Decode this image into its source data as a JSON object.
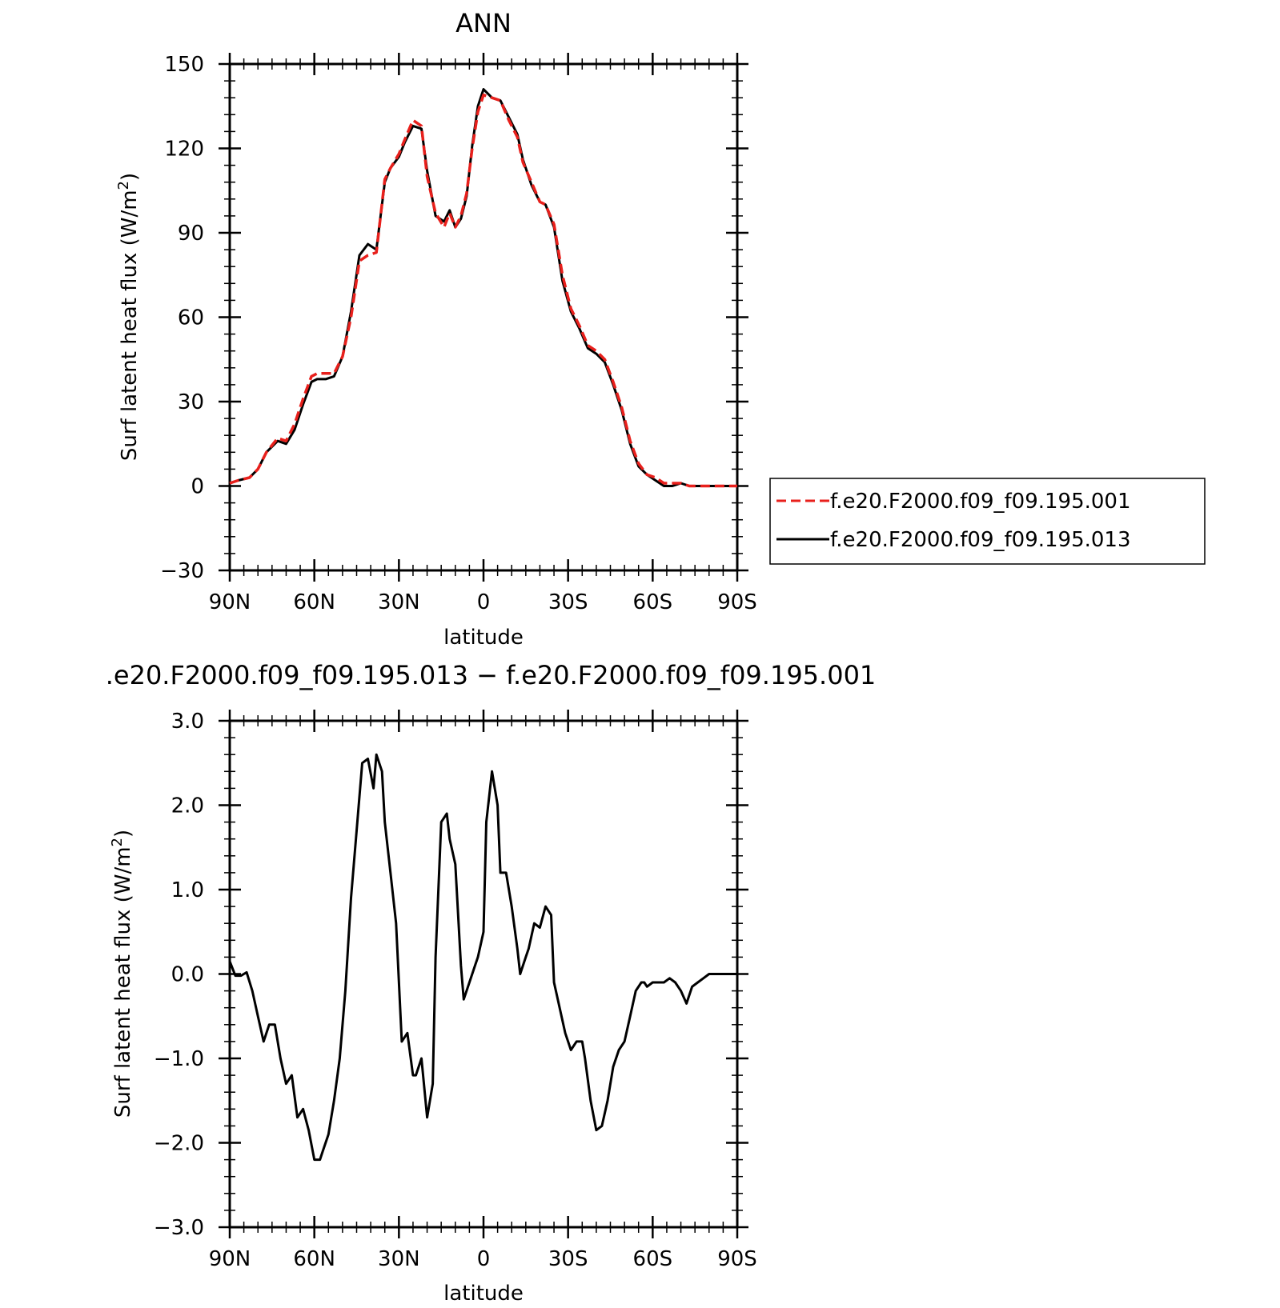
{
  "chart_data": [
    {
      "type": "line",
      "title": "ANN",
      "xlabel": "latitude",
      "ylabel": "Surf latent heat flux (W/m²)",
      "ylabel_main": "Surf latent heat flux (W/m",
      "ylabel_sup": "2",
      "ylabel_tail": ")",
      "xlim": [
        90,
        -90
      ],
      "ylim": [
        -30,
        150
      ],
      "xticks": [
        90,
        60,
        30,
        0,
        -30,
        -60,
        -90
      ],
      "xtick_labels": [
        "90N",
        "60N",
        "30N",
        "0",
        "30S",
        "60S",
        "90S"
      ],
      "yticks": [
        -30,
        0,
        30,
        60,
        90,
        120,
        150
      ],
      "ytick_labels": [
        "−30",
        "0",
        "30",
        "60",
        "90",
        "120",
        "150"
      ],
      "grid": false,
      "legend_position": "right",
      "series": [
        {
          "name": "f.e20.F2000.f09_f09.195.001",
          "color": "#e8201c",
          "dash": "dashed",
          "x": [
            90,
            87,
            83,
            80,
            77,
            73,
            70,
            67,
            64,
            61,
            59,
            56,
            53,
            50,
            47,
            44,
            41,
            38,
            35,
            33,
            30,
            28,
            25,
            22,
            20,
            17,
            14,
            12,
            10,
            8,
            6,
            4,
            2,
            0,
            -3,
            -6,
            -9,
            -12,
            -14,
            -17,
            -20,
            -22,
            -25,
            -28,
            -31,
            -34,
            -37,
            -40,
            -43,
            -46,
            -49,
            -52,
            -55,
            -58,
            -61,
            -64,
            -67,
            -70,
            -73,
            -76,
            -80,
            -83,
            -86,
            -88,
            -90
          ],
          "y": [
            1,
            2,
            3,
            6,
            12,
            17,
            16,
            22,
            31,
            39,
            40,
            40,
            40,
            46,
            60,
            80,
            82,
            83,
            109,
            113,
            118,
            123,
            130,
            128,
            110,
            97,
            92,
            97,
            92,
            96,
            104,
            120,
            133,
            139,
            138,
            137,
            130,
            124,
            115,
            108,
            101,
            100,
            93,
            75,
            63,
            57,
            50,
            48,
            45,
            37,
            28,
            16,
            8,
            4,
            3,
            1,
            1,
            1,
            0,
            0,
            0,
            0,
            0,
            0,
            0
          ]
        },
        {
          "name": "f.e20.F2000.f09_f09.195.013",
          "color": "#000000",
          "dash": "solid",
          "x": [
            90,
            87,
            83,
            80,
            77,
            73,
            70,
            67,
            64,
            61,
            59,
            56,
            53,
            50,
            47,
            44,
            41,
            38,
            35,
            33,
            30,
            28,
            25,
            22,
            20,
            17,
            14,
            12,
            10,
            8,
            6,
            4,
            2,
            0,
            -3,
            -6,
            -9,
            -12,
            -14,
            -17,
            -20,
            -22,
            -25,
            -28,
            -31,
            -34,
            -37,
            -40,
            -43,
            -46,
            -49,
            -52,
            -55,
            -58,
            -61,
            -64,
            -67,
            -70,
            -73,
            -76,
            -80,
            -83,
            -86,
            -88,
            -90
          ],
          "y": [
            1,
            2,
            3,
            6,
            12,
            16,
            15,
            20,
            29,
            37,
            38,
            38,
            39,
            46,
            62,
            82,
            86,
            84,
            108,
            113,
            117,
            122,
            128,
            127,
            112,
            96,
            94,
            98,
            92,
            95,
            103,
            121,
            135,
            141,
            138,
            137,
            131,
            125,
            116,
            107,
            101,
            100,
            92,
            73,
            62,
            56,
            49,
            47,
            44,
            36,
            27,
            15,
            7,
            4,
            2,
            0,
            0,
            1,
            0,
            0,
            0,
            0,
            0,
            0,
            0
          ]
        }
      ]
    },
    {
      "type": "line",
      "title": ".e20.F2000.f09_f09.195.013 − f.e20.F2000.f09_f09.195.001",
      "xlabel": "latitude",
      "ylabel": "Surf latent heat flux (W/m²)",
      "ylabel_main": "Surf latent heat flux (W/m",
      "ylabel_sup": "2",
      "ylabel_tail": ")",
      "xlim": [
        90,
        -90
      ],
      "ylim": [
        -3,
        3
      ],
      "xticks": [
        90,
        60,
        30,
        0,
        -30,
        -60,
        -90
      ],
      "xtick_labels": [
        "90N",
        "60N",
        "30N",
        "0",
        "30S",
        "60S",
        "90S"
      ],
      "yticks": [
        -3,
        -2,
        -1,
        0,
        1,
        2,
        3
      ],
      "ytick_labels": [
        "−3.0",
        "−2.0",
        "−1.0",
        "0.0",
        "1.0",
        "2.0",
        "3.0"
      ],
      "grid": false,
      "series": [
        {
          "color": "#000000",
          "dash": "solid",
          "x": [
            90,
            88,
            86,
            84,
            82,
            80,
            78,
            76,
            74,
            72,
            70,
            68,
            66,
            64,
            62,
            60,
            58,
            57,
            55,
            53,
            51,
            49,
            47,
            45,
            43,
            41,
            39,
            38,
            36,
            35,
            33,
            31,
            29,
            27,
            25,
            24,
            22,
            20,
            18,
            17,
            15,
            13,
            12,
            10,
            8,
            7,
            5,
            3,
            2,
            0,
            -1,
            -3,
            -5,
            -6,
            -8,
            -10,
            -12,
            -13,
            -15,
            -16,
            -18,
            -20,
            -22,
            -24,
            -25,
            -27,
            -29,
            -31,
            -33,
            -35,
            -36,
            -38,
            -40,
            -42,
            -44,
            -46,
            -48,
            -50,
            -52,
            -54,
            -56,
            -57,
            -58,
            -60,
            -62,
            -64,
            -66,
            -68,
            -70,
            -72,
            -74,
            -76,
            -78,
            -80,
            -82,
            -84,
            -86,
            -88,
            -90
          ],
          "y": [
            0.15,
            -0.02,
            -0.02,
            0.02,
            -0.2,
            -0.5,
            -0.8,
            -0.6,
            -0.6,
            -1.0,
            -1.3,
            -1.2,
            -1.7,
            -1.6,
            -1.85,
            -2.2,
            -2.2,
            -2.1,
            -1.9,
            -1.5,
            -1.0,
            -0.2,
            0.9,
            1.7,
            2.5,
            2.55,
            2.2,
            2.6,
            2.4,
            1.8,
            1.2,
            0.6,
            -0.8,
            -0.7,
            -1.2,
            -1.2,
            -1.0,
            -1.7,
            -1.3,
            0.2,
            1.8,
            1.9,
            1.6,
            1.3,
            0.1,
            -0.3,
            -0.1,
            0.1,
            0.2,
            0.5,
            1.8,
            2.4,
            2.0,
            1.2,
            1.2,
            0.8,
            0.3,
            0.0,
            0.2,
            0.3,
            0.6,
            0.55,
            0.8,
            0.7,
            -0.1,
            -0.4,
            -0.7,
            -0.9,
            -0.8,
            -0.8,
            -1.0,
            -1.5,
            -1.85,
            -1.8,
            -1.5,
            -1.1,
            -0.9,
            -0.8,
            -0.5,
            -0.2,
            -0.1,
            -0.1,
            -0.15,
            -0.1,
            -0.1,
            -0.1,
            -0.05,
            -0.1,
            -0.2,
            -0.35,
            -0.15,
            -0.1,
            -0.05,
            0.0,
            0.0,
            0.0,
            0.0,
            0.0,
            0.0
          ]
        }
      ]
    }
  ]
}
